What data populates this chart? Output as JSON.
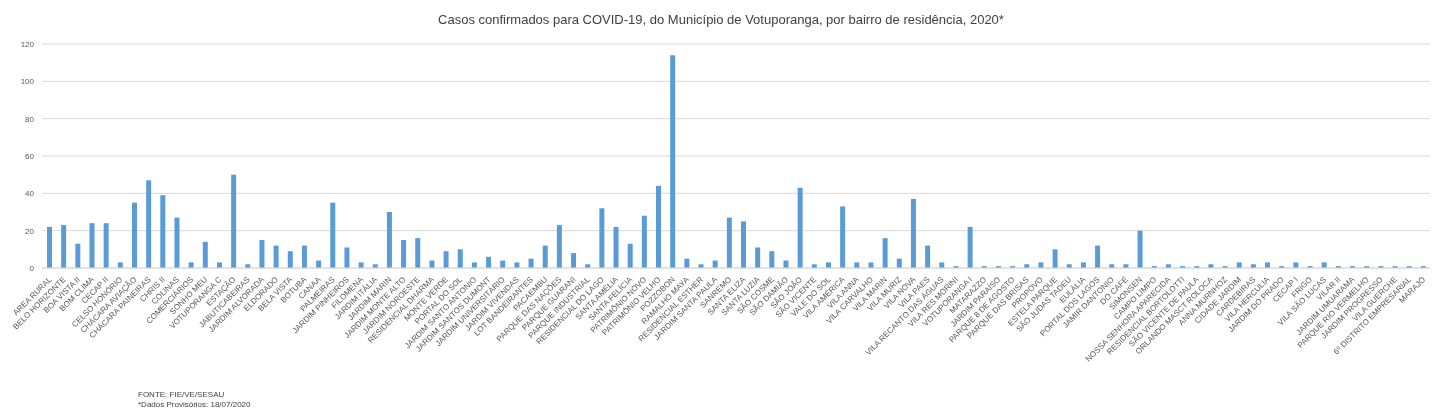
{
  "chart_data": {
    "type": "bar",
    "title": "Casos confirmados para COVID-19, do Município de Votuporanga, por bairro de residência, 2020*",
    "categories": [
      "AREA RURAL",
      "BELO HORIZONTE",
      "BOA VISTA II",
      "BOM CLIMA",
      "CECAP II",
      "CELSO HONÓRIO",
      "CHÁCARA AVIAÇÃO",
      "CHÁCARA PAINEIRAS",
      "CHRIS II",
      "COLINAS",
      "COMERCIÁRIOS",
      "SONHO MEU",
      "VOTUPORANGA C",
      "ESTAÇÃO",
      "JABUTICABEIRAS",
      "JARDIM ALVORADA",
      "ELDORADO",
      "BELA VISTA",
      "BOTUBA",
      "CANAA",
      "PALMEIRAS",
      "JARDIM PINHEIROS",
      "FILOMENA",
      "JARDIM ITÁLIA",
      "JARDIM MARIN",
      "JARDIM MONTE ALTO",
      "JARDIM NOROESTE",
      "RESIDENCIAL DHARMA",
      "MONTE VERDE",
      "PORTAL DO SOL",
      "JARDIM SANTO ANTONIO",
      "JARDIM SANTOS DUMONT",
      "JARDIM UNIVERSITÁRIO",
      "JARDIM VIVENDAS",
      "LOT BANDEIRANTES",
      "PACAEMBU",
      "PARQUE DAS NAÇÕES",
      "PARQUE GUARANI",
      "PARQUE INDUSTRIAL",
      "RESIDENCIAL DO LAGO",
      "SANTA AMÉLIA",
      "SANTA FELÍCIA",
      "PATRIMÔNIO NOVO",
      "PATRIMÔNIO VELHO",
      "POZZOBON",
      "RAMALHO MAYA",
      "RESIDENCIAL ESTHER",
      "JARDIM SANTA PAULA",
      "SANREMO",
      "SANTA ELIZA",
      "SANTA LUZIA",
      "SÃO COSME",
      "SÃO DAMIÃO",
      "SÃO JOÃO",
      "SÃO VICENTE",
      "VALE DO SOL",
      "VILA AMÉRICA",
      "VILA ANNA",
      "VILA CARVALHO",
      "VILA MARIN",
      "VILA MURIZ",
      "VILA NOVA",
      "VILA PAES",
      "VILA RECANTO DAS ÁGUAS",
      "VILA RES MORINI",
      "VOTUPORANGA I",
      "MATARAZZO",
      "JARDIM PARAÍSO",
      "PARQUE 8 DE AGOSTO",
      "PARQUE DAS BRISAS",
      "PROPOVO",
      "ESTELA PARQUE",
      "SÃO JUDAS TADEU",
      "EULÁLIA",
      "PORTAL DOS LAGOS",
      "JAMIR DANTONIO",
      "DO CAFÉ",
      "SIMONSEN",
      "CAMPO LIMPO",
      "NOSSA SENHORA APARECIDA",
      "RESIDENCIAL BORTOLOTTI",
      "SÃO VICENTE DE PAULA",
      "ORLANDO MASCT ROLOCA",
      "ANNA MURNHOZ",
      "CIDADE JARDIM",
      "CARDEBIRAS",
      "VILA HERCÚLIA",
      "JARDIM DO PRADO",
      "CECAP I",
      "FRIGO",
      "VILA SÃO LUCAS",
      "VILAR II",
      "JARDIM UMUARAMA",
      "PARQUE RIO VERMELHO",
      "JARDIM PROGRESSO",
      "VILA GUERCHE",
      "6º DISTRITO EMPRESARIAL",
      "MARAJÓ"
    ],
    "values": [
      22,
      23,
      13,
      24,
      24,
      3,
      35,
      47,
      39,
      27,
      3,
      14,
      3,
      50,
      2,
      15,
      12,
      9,
      12,
      4,
      35,
      11,
      3,
      2,
      30,
      15,
      16,
      4,
      9,
      10,
      3,
      6,
      4,
      3,
      5,
      12,
      23,
      8,
      2,
      32,
      22,
      13,
      28,
      44,
      114,
      5,
      2,
      4,
      27,
      25,
      11,
      9,
      4,
      43,
      2,
      3,
      33,
      3,
      3,
      16,
      5,
      37,
      12,
      3,
      1,
      22,
      1,
      1,
      1,
      2,
      3,
      10,
      2,
      3,
      12,
      2,
      2,
      20,
      1,
      2,
      1,
      1,
      2,
      1,
      3,
      2,
      3,
      1,
      3,
      1,
      3,
      1,
      1,
      1,
      1,
      1,
      1,
      1
    ],
    "color": "#5b9bd5",
    "ylim": [
      0,
      120
    ],
    "yticks": [
      0,
      20,
      40,
      60,
      80,
      100,
      120
    ],
    "grid": "y",
    "annotations": [
      "FONTE: FIE/VE/SESAU",
      "*Dados Provisórios: 18/07/2020"
    ]
  }
}
